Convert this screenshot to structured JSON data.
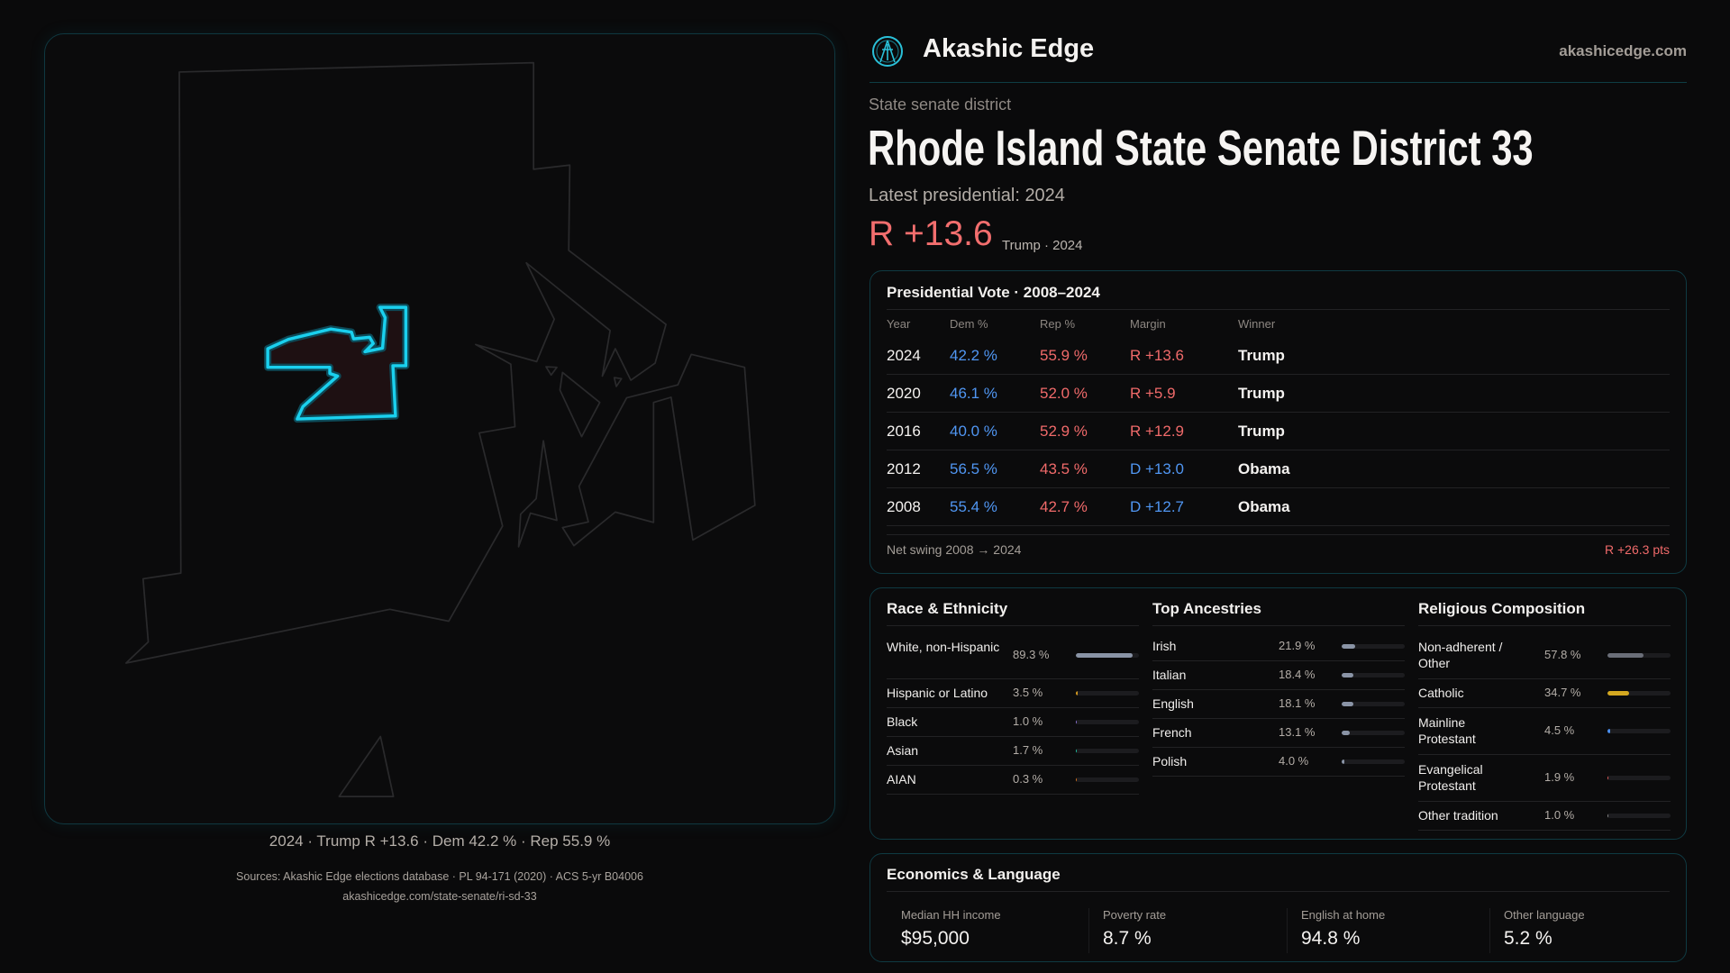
{
  "brand": {
    "name": "Akashic Edge",
    "site": "akashicedge.com",
    "logo_icon": "akashic-edge-logo"
  },
  "header": {
    "kicker": "State senate district",
    "title": "Rhode Island State Senate District 33",
    "latest": "Latest presidential: 2024",
    "margin": "R +13.6",
    "margin_sub": "Trump · 2024"
  },
  "map": {
    "caption": "2024 · Trump R +13.6 · Dem 42.2 % · Rep 55.9 %",
    "highlight_color": "#1ad0ee"
  },
  "colors": {
    "dem": "#5096f2",
    "rep": "#f06a6a",
    "accent": "#1ad0ee"
  },
  "presidential": {
    "title": "Presidential Vote · 2008–2024",
    "columns": [
      "Year",
      "Dem %",
      "Rep %",
      "Margin",
      "Winner"
    ],
    "rows": [
      {
        "year": "2024",
        "dem": "42.2 %",
        "rep": "55.9 %",
        "margin": "R +13.6",
        "party": "rep",
        "winner": "Trump"
      },
      {
        "year": "2020",
        "dem": "46.1 %",
        "rep": "52.0 %",
        "margin": "R +5.9",
        "party": "rep",
        "winner": "Trump"
      },
      {
        "year": "2016",
        "dem": "40.0 %",
        "rep": "52.9 %",
        "margin": "R +12.9",
        "party": "rep",
        "winner": "Trump"
      },
      {
        "year": "2012",
        "dem": "56.5 %",
        "rep": "43.5 %",
        "margin": "D +13.0",
        "party": "dem",
        "winner": "Obama"
      },
      {
        "year": "2008",
        "dem": "55.4 %",
        "rep": "42.7 %",
        "margin": "D +12.7",
        "party": "dem",
        "winner": "Obama"
      }
    ],
    "net_swing_label": "Net swing 2008 → 2024",
    "net_swing_value": "R +26.3 pts"
  },
  "demographics": [
    {
      "title": "Race & Ethnicity",
      "items": [
        {
          "label": "White, non-Hispanic",
          "value": "89.3 %",
          "pct": 89.3,
          "color": "#8a94a6"
        },
        {
          "label": "Hispanic or Latino",
          "value": "3.5 %",
          "pct": 3.5,
          "color": "#d49a20"
        },
        {
          "label": "Black",
          "value": "1.0 %",
          "pct": 1.0,
          "color": "#8a70d0"
        },
        {
          "label": "Asian",
          "value": "1.7 %",
          "pct": 1.7,
          "color": "#20c0a0"
        },
        {
          "label": "AIAN",
          "value": "0.3 %",
          "pct": 0.3,
          "color": "#d07020"
        }
      ]
    },
    {
      "title": "Top Ancestries",
      "items": [
        {
          "label": "Irish",
          "value": "21.9 %",
          "pct": 21.9,
          "color": "#8a94a6"
        },
        {
          "label": "Italian",
          "value": "18.4 %",
          "pct": 18.4,
          "color": "#8a94a6"
        },
        {
          "label": "English",
          "value": "18.1 %",
          "pct": 18.1,
          "color": "#8a94a6"
        },
        {
          "label": "French",
          "value": "13.1 %",
          "pct": 13.1,
          "color": "#8a94a6"
        },
        {
          "label": "Polish",
          "value": "4.0 %",
          "pct": 4.0,
          "color": "#8a94a6"
        }
      ]
    },
    {
      "title": "Religious Composition",
      "items": [
        {
          "label": "Non-adherent / Other",
          "value": "57.8 %",
          "pct": 57.8,
          "color": "#6a6e78"
        },
        {
          "label": "Catholic",
          "value": "34.7 %",
          "pct": 34.7,
          "color": "#d4a820"
        },
        {
          "label": "Mainline Protestant",
          "value": "4.5 %",
          "pct": 4.5,
          "color": "#4a8ff0"
        },
        {
          "label": "Evangelical Protestant",
          "value": "1.9 %",
          "pct": 1.9,
          "color": "#e05a5a"
        },
        {
          "label": "Other tradition",
          "value": "1.0 %",
          "pct": 1.0,
          "color": "#888888"
        }
      ]
    }
  ],
  "economics": {
    "title": "Economics & Language",
    "stats": [
      {
        "label": "Median HH income",
        "value": "$95,000"
      },
      {
        "label": "Poverty rate",
        "value": "8.7 %"
      },
      {
        "label": "English at home",
        "value": "94.8 %"
      },
      {
        "label": "Other language",
        "value": "5.2 %"
      }
    ]
  },
  "footer": {
    "sources": "Sources: Akashic Edge elections database · PL 94-171 (2020) · ACS 5-yr B04006",
    "url": "akashicedge.com/state-senate/ri-sd-33"
  }
}
